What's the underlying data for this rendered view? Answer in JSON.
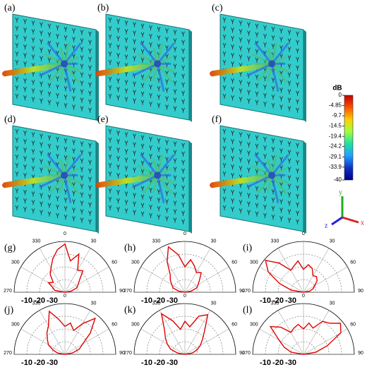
{
  "figure": {
    "panels_3d": [
      {
        "label": "(a)"
      },
      {
        "label": "(b)"
      },
      {
        "label": "(c)"
      },
      {
        "label": "(d)"
      },
      {
        "label": "(e)"
      },
      {
        "label": "(f)"
      }
    ],
    "colorbar": {
      "title": "dB",
      "lim": [
        -40,
        0
      ],
      "ticks": [
        0,
        -4.85,
        -9.7,
        -14.5,
        -19.4,
        -24.2,
        -29.1,
        -33.9,
        -40
      ],
      "colormap": [
        "#c00000",
        "#ff5000",
        "#ffd000",
        "#a0ff40",
        "#20e0a0",
        "#20a0ff",
        "#1030c0",
        "#000090"
      ]
    },
    "axes_triad": {
      "x": "x",
      "y": "y",
      "z": "z"
    },
    "polar_axes": {
      "type": "polar",
      "rlim": [
        -40,
        0
      ],
      "r_ticks": [
        -10,
        -20,
        -30
      ],
      "angle_ticks": [
        270,
        300,
        330,
        0,
        30,
        60,
        90
      ],
      "color": "#e00000"
    },
    "polar_panels": [
      {
        "label": "(g)",
        "angles": [
          -90,
          -80,
          -70,
          -60,
          -50,
          -40,
          -30,
          -20,
          -10,
          0,
          10,
          20,
          30,
          40,
          50,
          60,
          70,
          80,
          90
        ],
        "gain": [
          -40,
          -32,
          -30,
          -25,
          -28,
          -22,
          -18,
          -12,
          -6,
          -2,
          -15,
          -8,
          -20,
          -18,
          -25,
          -28,
          -30,
          -35,
          -40
        ]
      },
      {
        "label": "(h)",
        "angles": [
          -90,
          -80,
          -70,
          -60,
          -50,
          -40,
          -30,
          -20,
          -10,
          0,
          10,
          20,
          30,
          40,
          50,
          60,
          70,
          80,
          90
        ],
        "gain": [
          -40,
          -35,
          -30,
          -28,
          -25,
          -22,
          -12,
          -2,
          -10,
          -20,
          -14,
          -18,
          -22,
          -20,
          -25,
          -28,
          -30,
          -35,
          -40
        ]
      },
      {
        "label": "(i)",
        "angles": [
          -90,
          -80,
          -70,
          -60,
          -50,
          -40,
          -30,
          -20,
          -10,
          0,
          10,
          20,
          30,
          40,
          50,
          60,
          70,
          80,
          90
        ],
        "gain": [
          -40,
          -30,
          -20,
          -8,
          -1,
          -10,
          -20,
          -18,
          -15,
          -22,
          -18,
          -20,
          -25,
          -24,
          -26,
          -30,
          -32,
          -35,
          -40
        ]
      },
      {
        "label": "(j)",
        "angles": [
          -90,
          -80,
          -70,
          -60,
          -50,
          -40,
          -30,
          -20,
          -10,
          0,
          10,
          20,
          30,
          40,
          50,
          60,
          70,
          80,
          90
        ],
        "gain": [
          -40,
          -34,
          -30,
          -25,
          -22,
          -18,
          -14,
          -4,
          -12,
          -18,
          -15,
          -20,
          -12,
          -3,
          -14,
          -24,
          -28,
          -34,
          -40
        ]
      },
      {
        "label": "(k)",
        "angles": [
          -90,
          -80,
          -70,
          -60,
          -50,
          -40,
          -30,
          -20,
          -10,
          0,
          10,
          20,
          30,
          40,
          50,
          60,
          70,
          80,
          90
        ],
        "gain": [
          -40,
          -34,
          -28,
          -24,
          -20,
          -15,
          -3,
          -12,
          -20,
          -14,
          -18,
          -8,
          -4,
          -16,
          -22,
          -26,
          -30,
          -34,
          -40
        ]
      },
      {
        "label": "(l)",
        "angles": [
          -90,
          -80,
          -70,
          -60,
          -50,
          -40,
          -30,
          -20,
          -10,
          0,
          10,
          20,
          30,
          40,
          50,
          60,
          70,
          80,
          90
        ],
        "gain": [
          -40,
          -30,
          -24,
          -18,
          -6,
          -12,
          -20,
          -18,
          -16,
          -20,
          -15,
          -18,
          -10,
          -8,
          -2,
          -6,
          -20,
          -30,
          -40
        ]
      }
    ]
  }
}
